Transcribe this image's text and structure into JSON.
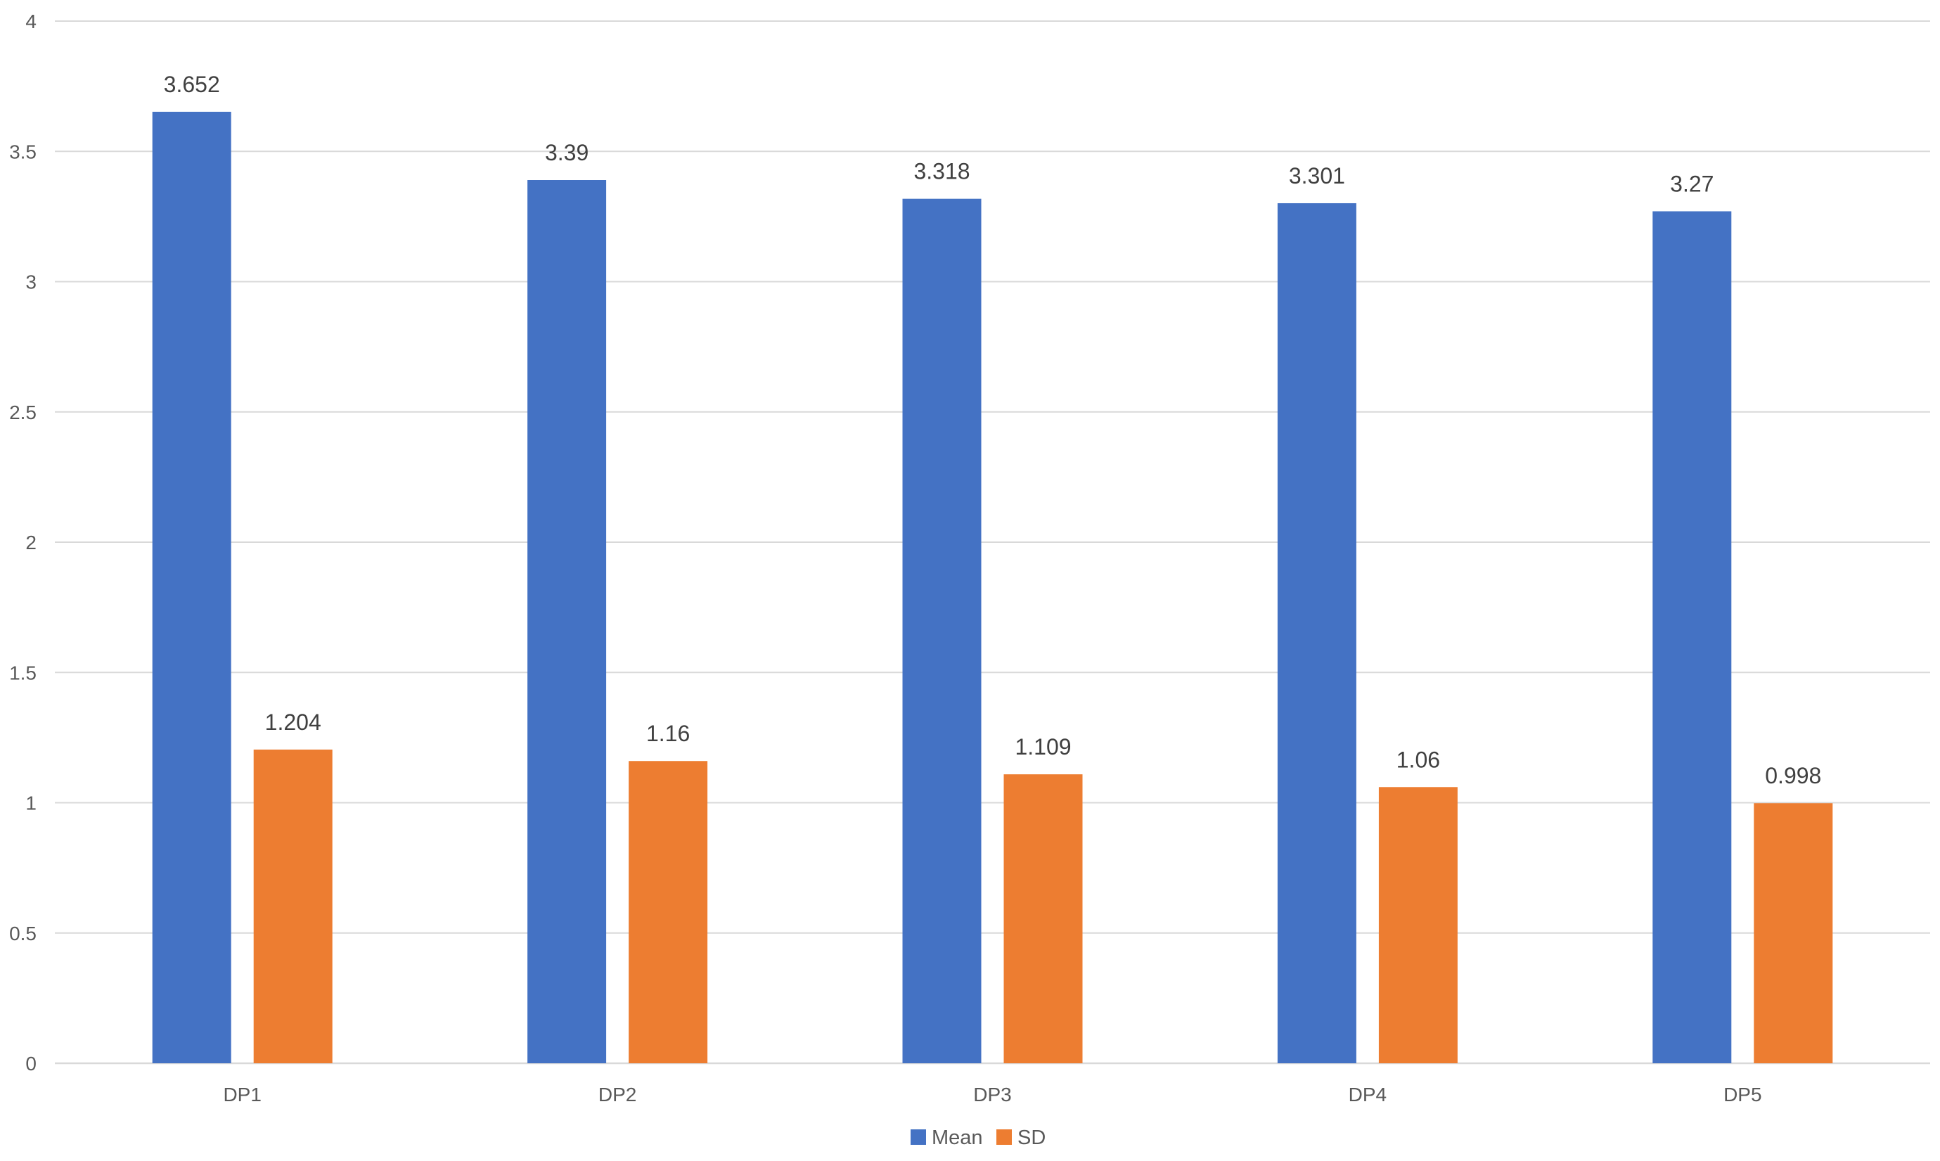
{
  "chart_data": {
    "type": "bar",
    "categories": [
      "DP1",
      "DP2",
      "DP3",
      "DP4",
      "DP5"
    ],
    "series": [
      {
        "name": "Mean",
        "values": [
          3.652,
          3.39,
          3.318,
          3.301,
          3.27
        ],
        "labels": [
          "3.652",
          "3.39",
          "3.318",
          "3.301",
          "3.27"
        ],
        "color": "#4472C4"
      },
      {
        "name": "SD",
        "values": [
          1.204,
          1.16,
          1.109,
          1.06,
          0.998
        ],
        "labels": [
          "1.204",
          "1.16",
          "1.109",
          "1.06",
          "0.998"
        ],
        "color": "#ED7D31"
      }
    ],
    "ylim": [
      0,
      4
    ],
    "yticks": [
      0,
      0.5,
      1,
      1.5,
      2,
      2.5,
      3,
      3.5,
      4
    ],
    "ytick_labels": [
      "0",
      "0.5",
      "1",
      "1.5",
      "2",
      "2.5",
      "3",
      "3.5",
      "4"
    ],
    "title": "",
    "xlabel": "",
    "ylabel": "",
    "grid": true,
    "legend_position": "bottom-center",
    "gridline_color": "#D9D9D9",
    "axis_color": "#D9D9D9"
  }
}
